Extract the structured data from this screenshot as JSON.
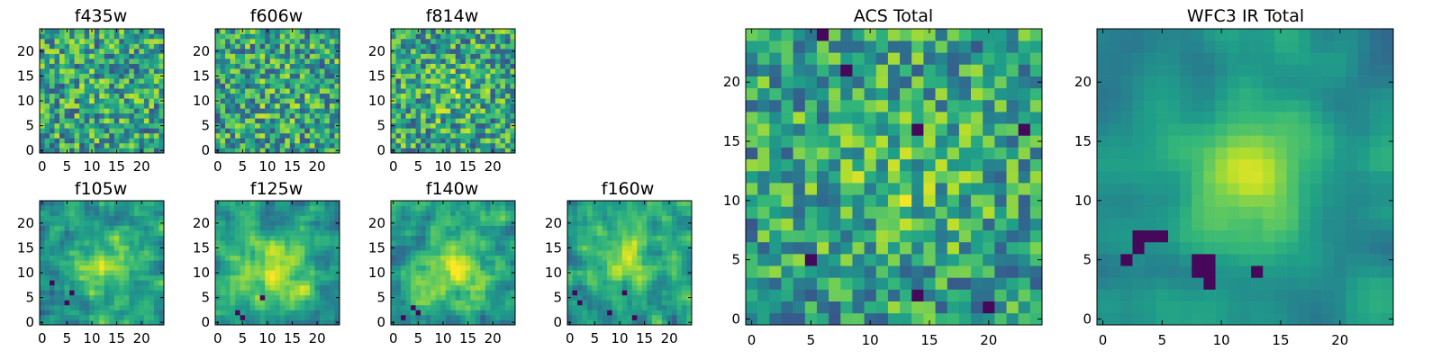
{
  "chart_data": {
    "type": "heatmap",
    "colormap": "viridis",
    "value_range": [
      0,
      1
    ],
    "grid": false,
    "panels": [
      {
        "title": "f435w",
        "size": 25,
        "xticks": [
          0,
          5,
          10,
          15,
          20
        ],
        "yticks": [
          0,
          5,
          10,
          15,
          20
        ],
        "seed": 11,
        "peak": [
          12,
          12
        ],
        "peak_amp": 0.04,
        "peak_sigma": 4,
        "noise": 1.0,
        "smooth": 0,
        "dark": []
      },
      {
        "title": "f606w",
        "size": 25,
        "xticks": [
          0,
          5,
          10,
          15,
          20
        ],
        "yticks": [
          0,
          5,
          10,
          15,
          20
        ],
        "seed": 23,
        "peak": [
          12,
          12
        ],
        "peak_amp": 0.06,
        "peak_sigma": 4,
        "noise": 1.0,
        "smooth": 0,
        "dark": []
      },
      {
        "title": "f814w",
        "size": 25,
        "xticks": [
          0,
          5,
          10,
          15,
          20
        ],
        "yticks": [
          0,
          5,
          10,
          15,
          20
        ],
        "seed": 37,
        "peak": [
          12,
          12
        ],
        "peak_amp": 0.12,
        "peak_sigma": 4,
        "noise": 1.0,
        "smooth": 0,
        "dark": []
      },
      {
        "title": "f105w",
        "size": 25,
        "xticks": [
          0,
          5,
          10,
          15,
          20
        ],
        "yticks": [
          0,
          5,
          10,
          15,
          20
        ],
        "seed": 41,
        "peak": [
          13,
          11
        ],
        "peak_amp": 0.35,
        "peak_sigma": 4.5,
        "noise": 0.8,
        "smooth": 1,
        "dark": [
          [
            6,
            6
          ],
          [
            5,
            4
          ],
          [
            2,
            8
          ]
        ]
      },
      {
        "title": "f125w",
        "size": 25,
        "xticks": [
          0,
          5,
          10,
          15,
          20
        ],
        "yticks": [
          0,
          5,
          10,
          15,
          20
        ],
        "seed": 53,
        "peak": [
          12,
          10
        ],
        "peak_amp": 0.35,
        "peak_sigma": 4.5,
        "noise": 0.8,
        "smooth": 1,
        "dark": [
          [
            4,
            2
          ],
          [
            5,
            1
          ],
          [
            9,
            5
          ]
        ]
      },
      {
        "title": "f140w",
        "size": 25,
        "xticks": [
          0,
          5,
          10,
          15,
          20
        ],
        "yticks": [
          0,
          5,
          10,
          15,
          20
        ],
        "seed": 67,
        "peak": [
          12,
          11
        ],
        "peak_amp": 0.35,
        "peak_sigma": 4.5,
        "noise": 0.8,
        "smooth": 1,
        "dark": [
          [
            4,
            3
          ],
          [
            5,
            2
          ],
          [
            2,
            1
          ]
        ]
      },
      {
        "title": "f160w",
        "size": 25,
        "xticks": [
          0,
          5,
          10,
          15,
          20
        ],
        "yticks": [
          0,
          5,
          10,
          15,
          20
        ],
        "seed": 79,
        "peak": [
          11,
          13
        ],
        "peak_amp": 0.35,
        "peak_sigma": 4.0,
        "noise": 0.8,
        "smooth": 1,
        "dark": [
          [
            1,
            6
          ],
          [
            2,
            4
          ],
          [
            8,
            2
          ],
          [
            13,
            1
          ],
          [
            11,
            6
          ]
        ]
      },
      {
        "title": "ACS Total",
        "size": 25,
        "xticks": [
          0,
          5,
          10,
          15,
          20
        ],
        "yticks": [
          0,
          5,
          10,
          15,
          20
        ],
        "seed": 91,
        "peak": [
          12,
          12
        ],
        "peak_amp": 0.15,
        "peak_sigma": 5,
        "noise": 0.9,
        "smooth": 0,
        "dark": [
          [
            6,
            24
          ],
          [
            8,
            21
          ],
          [
            14,
            16
          ],
          [
            23,
            16
          ],
          [
            5,
            5
          ],
          [
            14,
            2
          ],
          [
            20,
            1
          ]
        ]
      },
      {
        "title": "WFC3 IR Total",
        "size": 25,
        "xticks": [
          0,
          5,
          10,
          15,
          20
        ],
        "yticks": [
          0,
          5,
          10,
          15,
          20
        ],
        "seed": 103,
        "peak": [
          12,
          12
        ],
        "peak_amp": 0.45,
        "peak_sigma": 4.5,
        "noise": 0.45,
        "smooth": 2,
        "dark": [
          [
            3,
            7
          ],
          [
            4,
            7
          ],
          [
            3,
            6
          ],
          [
            2,
            5
          ],
          [
            8,
            5
          ],
          [
            9,
            5
          ],
          [
            8,
            4
          ],
          [
            9,
            4
          ],
          [
            9,
            3
          ],
          [
            5,
            7
          ],
          [
            13,
            4
          ]
        ]
      }
    ]
  }
}
